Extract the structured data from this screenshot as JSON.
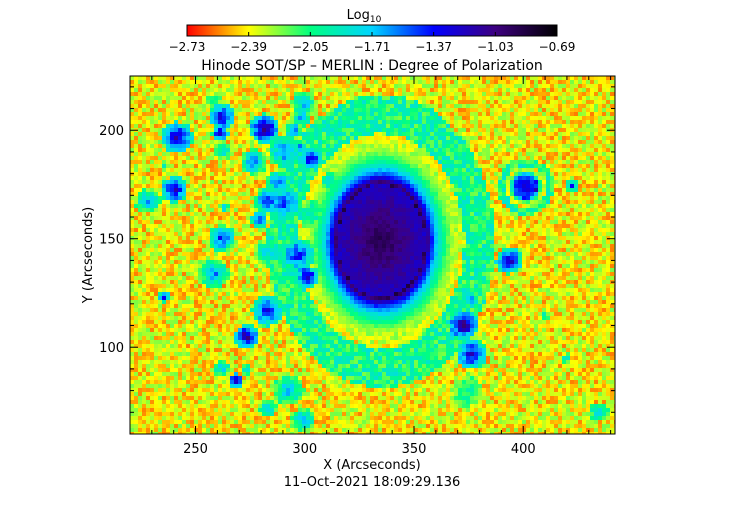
{
  "chart_data": {
    "type": "heatmap",
    "title": "Hinode SOT/SP – MERLIN : Degree of Polarization",
    "xlabel": "X (Arcseconds)",
    "ylabel": "Y (Arcseconds)",
    "footer": "11–Oct–2021 18:09:29.136",
    "xlim": [
      220,
      442
    ],
    "ylim": [
      60,
      225
    ],
    "x_ticks": [
      250,
      300,
      350,
      400
    ],
    "y_ticks": [
      100,
      150,
      200
    ],
    "colorbar": {
      "label_main": "Log",
      "label_sub": "10",
      "min": -2.73,
      "max": -0.69,
      "tick_labels": [
        "−2.73",
        "−2.39",
        "−2.05",
        "−1.71",
        "−1.37",
        "−1.03",
        "−0.69"
      ],
      "colormap": [
        "#ff0000",
        "#ffff00",
        "#00ff80",
        "#00d4ff",
        "#0000ff",
        "#3d0080",
        "#000000"
      ]
    },
    "features": [
      {
        "name": "sunspot",
        "x": 335,
        "y": 149,
        "rx": 20,
        "ry": 26,
        "value": -0.9
      },
      {
        "name": "pore",
        "x": 401,
        "y": 174,
        "rx": 5,
        "ry": 5,
        "value": -1.2
      }
    ]
  }
}
